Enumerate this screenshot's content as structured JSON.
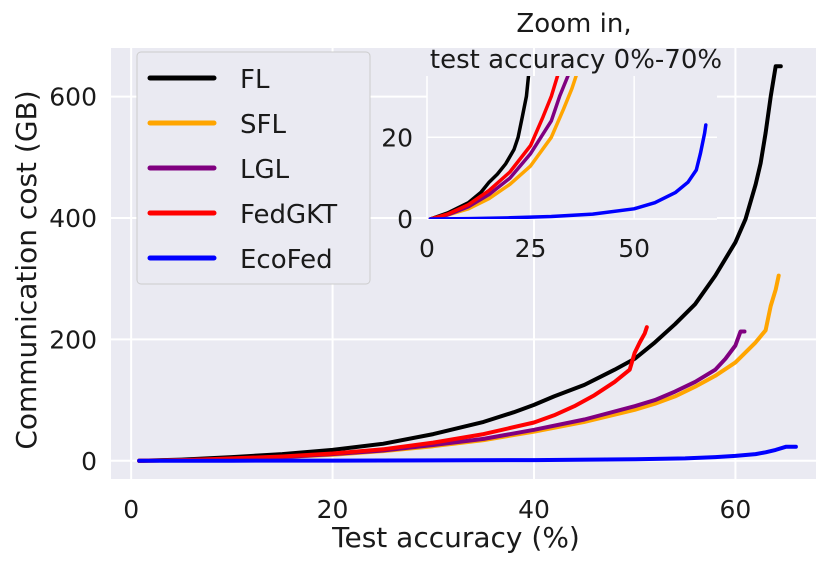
{
  "chart_data": [
    {
      "type": "line",
      "title": "",
      "xlabel": "Test accuracy (%)",
      "ylabel": "Communication cost (GB)",
      "xlim": [
        -2,
        68
      ],
      "ylim": [
        -30,
        680
      ],
      "xticks": [
        0,
        20,
        40,
        60
      ],
      "yticks": [
        0,
        200,
        400,
        600
      ],
      "grid": true,
      "legend": "top-left",
      "series": [
        {
          "name": "FL",
          "color": "#000000",
          "x": [
            0.8,
            5,
            10,
            15,
            20,
            25,
            30,
            35,
            38,
            40,
            42,
            45,
            48,
            50,
            52,
            54,
            56,
            58,
            60,
            61,
            62,
            62.5,
            63,
            63.5,
            64,
            64.5
          ],
          "y": [
            0,
            2,
            6,
            11,
            18,
            28,
            44,
            64,
            80,
            92,
            106,
            125,
            150,
            168,
            195,
            225,
            258,
            305,
            360,
            398,
            455,
            490,
            540,
            600,
            650,
            650
          ]
        },
        {
          "name": "SFL",
          "color": "#FFA500",
          "x": [
            0.8,
            5,
            10,
            15,
            20,
            25,
            30,
            35,
            40,
            45,
            50,
            52,
            54,
            56,
            58,
            60,
            62,
            63,
            63.5,
            64,
            64.3
          ],
          "y": [
            0,
            1,
            3,
            6,
            10,
            16,
            24,
            34,
            48,
            64,
            84,
            94,
            106,
            122,
            140,
            162,
            195,
            215,
            255,
            282,
            305
          ]
        },
        {
          "name": "LGL",
          "color": "#800080",
          "x": [
            0.8,
            5,
            10,
            15,
            20,
            25,
            30,
            35,
            40,
            45,
            50,
            52,
            54,
            56,
            58,
            59,
            60,
            60.5,
            60.9
          ],
          "y": [
            0,
            1,
            3,
            6,
            11,
            17,
            26,
            36,
            51,
            68,
            90,
            100,
            114,
            130,
            150,
            168,
            190,
            213,
            213
          ]
        },
        {
          "name": "FedGKT",
          "color": "#FF0000",
          "x": [
            0.8,
            5,
            10,
            15,
            20,
            25,
            30,
            35,
            40,
            42,
            44,
            46,
            48,
            49.5,
            50,
            50.5,
            51,
            51.2
          ],
          "y": [
            0,
            1,
            4,
            7,
            12,
            19,
            30,
            44,
            63,
            75,
            90,
            108,
            130,
            150,
            178,
            195,
            210,
            220
          ]
        },
        {
          "name": "EcoFed",
          "color": "#0000FF",
          "x": [
            0.8,
            10,
            20,
            30,
            40,
            50,
            55,
            58,
            60,
            62,
            63,
            64,
            65,
            66
          ],
          "y": [
            0,
            0.1,
            0.3,
            0.6,
            1.2,
            2.5,
            4,
            6,
            8,
            11,
            14,
            18,
            23,
            23
          ]
        }
      ]
    },
    {
      "type": "line",
      "title": "Zoom in,\ntest accuracy 0%-70%",
      "title_lines": [
        "Zoom in,",
        "test accuracy 0%-70%"
      ],
      "xlabel": "",
      "ylabel": "",
      "xlim": [
        0,
        70
      ],
      "ylim": [
        0,
        35
      ],
      "xticks": [
        0,
        25,
        50
      ],
      "yticks": [
        0,
        20
      ],
      "grid": true,
      "series": [
        {
          "name": "FL",
          "color": "#000000",
          "x": [
            0.8,
            5,
            10,
            13,
            15,
            17,
            19,
            21,
            22,
            23,
            24,
            24.5
          ],
          "y": [
            0,
            1.5,
            4,
            6.5,
            9,
            11,
            13.5,
            17,
            20,
            25,
            30,
            35
          ]
        },
        {
          "name": "SFL",
          "color": "#FFA500",
          "x": [
            0.8,
            5,
            10,
            15,
            20,
            25,
            30,
            33,
            35,
            36
          ],
          "y": [
            0,
            1,
            2.5,
            5,
            8.5,
            13,
            20,
            27,
            32,
            35
          ]
        },
        {
          "name": "LGL",
          "color": "#800080",
          "x": [
            0.8,
            5,
            10,
            15,
            20,
            25,
            30,
            32,
            34
          ],
          "y": [
            0,
            1,
            3,
            6,
            10,
            16,
            24,
            30,
            35
          ]
        },
        {
          "name": "FedGKT",
          "color": "#FF0000",
          "x": [
            0.8,
            5,
            10,
            15,
            20,
            25,
            28,
            30,
            31.5
          ],
          "y": [
            0,
            1.2,
            3.5,
            7,
            11.5,
            18,
            25,
            30,
            35
          ]
        },
        {
          "name": "EcoFed",
          "color": "#0000FF",
          "x": [
            0.8,
            10,
            20,
            30,
            40,
            50,
            55,
            60,
            63,
            65,
            66,
            67,
            67.3
          ],
          "y": [
            0,
            0.1,
            0.3,
            0.6,
            1.2,
            2.5,
            4,
            6.5,
            9,
            12,
            16,
            21,
            23
          ]
        }
      ]
    }
  ]
}
